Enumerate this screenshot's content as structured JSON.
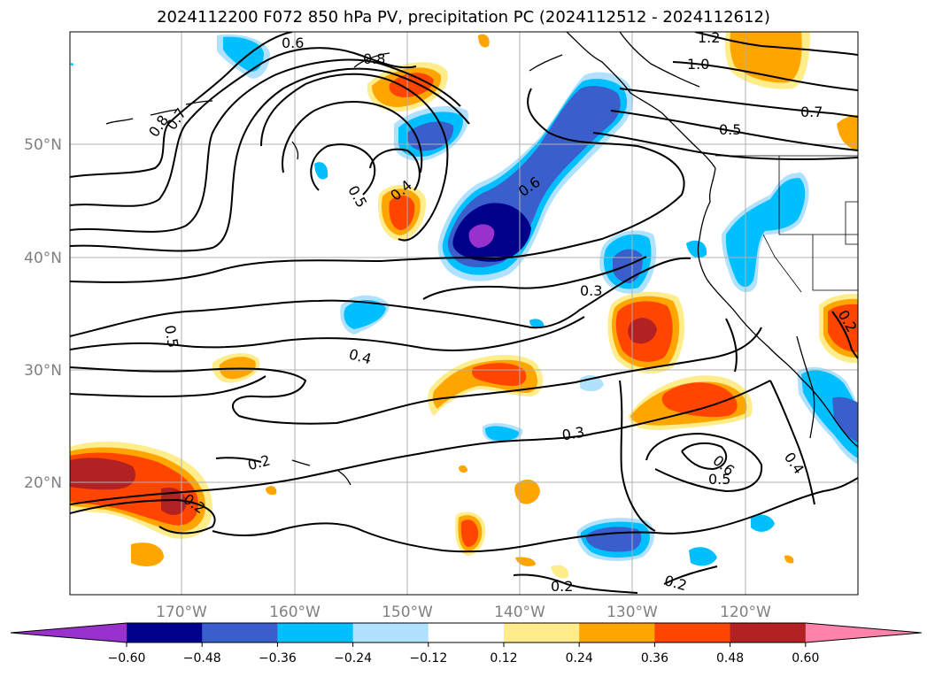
{
  "title": "2024112200 F072 850 hPa PV, precipitation PC (2024112512 - 2024112612)",
  "lat_labels": [
    "50°N",
    "40°N",
    "30°N",
    "20°N"
  ],
  "lon_labels": [
    "170°W",
    "160°W",
    "150°W",
    "140°W",
    "130°W",
    "120°W"
  ],
  "colorbar": {
    "colors": [
      "#9932cc",
      "#00008b",
      "#3a5fcd",
      "#00bfff",
      "#b0e2ff",
      "#ffffff",
      "#ffec8b",
      "#ffa500",
      "#ff4500",
      "#b22222",
      "#ff82ab"
    ],
    "ticks": [
      "−0.60",
      "−0.48",
      "−0.36",
      "−0.24",
      "−0.12",
      "0.12",
      "0.24",
      "0.36",
      "0.48",
      "0.60"
    ]
  },
  "contour_labels": [
    "0.6",
    "0.8",
    "0.8",
    "0.7",
    "1.2",
    "1.0",
    "0.7",
    "0.5",
    "0.6",
    "0.5",
    "0.4",
    "0.3",
    "0.5",
    "0.4",
    "0.2",
    "0.2",
    "0.3",
    "0.6",
    "0.5",
    "0.4",
    "0.2",
    "0.2",
    "0.2"
  ]
}
